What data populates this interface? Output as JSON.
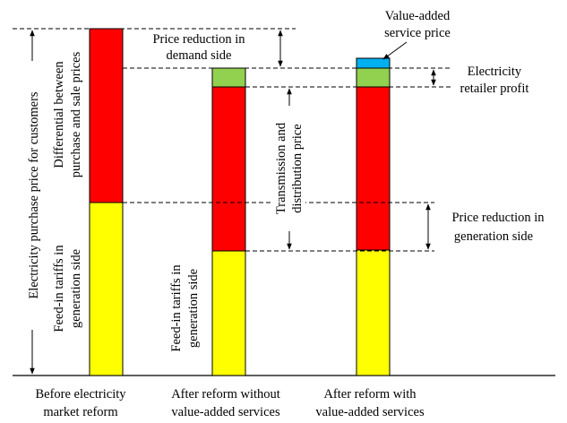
{
  "colors": {
    "generation": "#ffff00",
    "differential": "#ff0000",
    "transmission": "#ff0000",
    "retailer": "#92d050",
    "value_added": "#00b0f0"
  },
  "categories": [
    [
      "Before electricity",
      "market reform"
    ],
    [
      "After reform without",
      "value-added services"
    ],
    [
      "After reform with",
      "value-added services"
    ]
  ],
  "labels": {
    "y_axis": "Electricity purchase price for customers",
    "differential": [
      "Differential between",
      "purchase and sale prices"
    ],
    "feed_in_1": [
      "Feed-in tariffs in",
      "generation side"
    ],
    "feed_in_2": [
      "Feed-in tariffs in",
      "generation side"
    ],
    "price_reduction_demand": [
      "Price reduction in",
      "demand side"
    ],
    "transmission": [
      "Transmission and",
      "distribution price"
    ],
    "value_added_price": [
      "Value-added",
      "service price"
    ],
    "retailer_profit": [
      "Electricity",
      "retailer profit"
    ],
    "price_reduction_generation": [
      "Price reduction in",
      "generation side"
    ]
  }
}
